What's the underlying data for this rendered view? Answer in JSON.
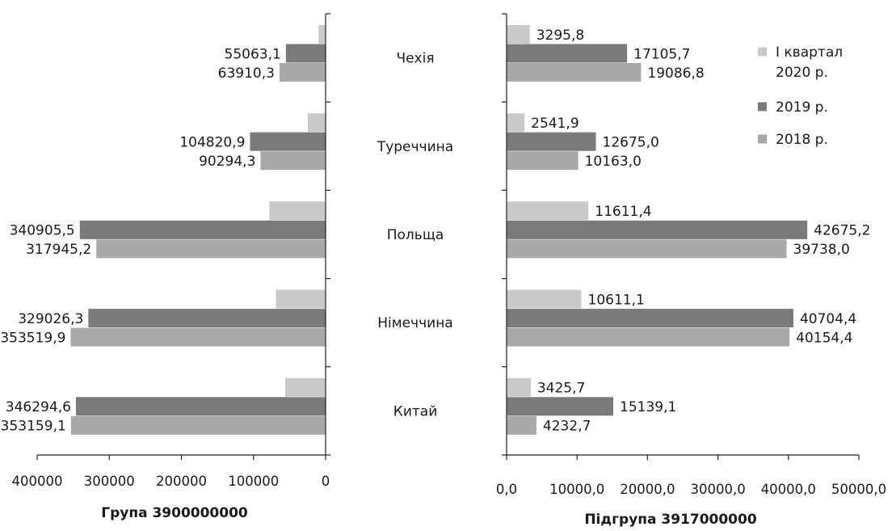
{
  "chart_data": [
    {
      "type": "bar",
      "orientation": "horizontal",
      "direction": "reversed",
      "title": "Група 3900000000",
      "categories": [
        "Чехія",
        "Туреччина",
        "Польща",
        "Німеччина",
        "Китай"
      ],
      "series": [
        {
          "key": "q1_2020",
          "values": [
            9600,
            24600,
            78000,
            69000,
            56000
          ],
          "labels": [
            "",
            "",
            "",
            "",
            ""
          ]
        },
        {
          "key": "y2019",
          "values": [
            55063.1,
            104820.9,
            340905.5,
            329026.3,
            346294.6
          ],
          "labels": [
            "55063,1",
            "104820,9",
            "340905,5",
            "329026,3",
            "346294,6"
          ]
        },
        {
          "key": "y2018",
          "values": [
            63910.3,
            90294.3,
            317945.2,
            353519.9,
            353159.1
          ],
          "labels": [
            "63910,3",
            "90294,3",
            "317945,2",
            "353519,9",
            "353159,1"
          ]
        }
      ],
      "xlim": [
        0,
        400000
      ],
      "ticks": [
        400000,
        300000,
        200000,
        100000,
        0
      ],
      "tick_labels": [
        "400000",
        "300000",
        "200000",
        "100000",
        "0"
      ],
      "grid": false
    },
    {
      "type": "bar",
      "orientation": "horizontal",
      "title": "Підгрупа 3917000000",
      "categories": [
        "Чехія",
        "Туреччина",
        "Польща",
        "Німеччина",
        "Китай"
      ],
      "series": [
        {
          "key": "q1_2020",
          "name": "І квартал 2020 р.",
          "values": [
            3295.8,
            2541.9,
            11611.4,
            10611.1,
            3425.7
          ],
          "labels": [
            "3295,8",
            "2541,9",
            "11611,4",
            "10611,1",
            "3425,7"
          ]
        },
        {
          "key": "y2019",
          "name": "2019 р.",
          "values": [
            17105.7,
            12675.0,
            42675.2,
            40704.4,
            15139.1
          ],
          "labels": [
            "17105,7",
            "12675,0",
            "42675,2",
            "40704,4",
            "15139,1"
          ]
        },
        {
          "key": "y2018",
          "name": "2018 р.",
          "values": [
            19086.8,
            10163.0,
            39738.0,
            40154.4,
            4232.7
          ],
          "labels": [
            "19086,8",
            "10163,0",
            "39738,0",
            "40154,4",
            "4232,7"
          ]
        }
      ],
      "xlim": [
        0,
        50000
      ],
      "ticks": [
        0,
        10000,
        20000,
        30000,
        40000,
        50000
      ],
      "tick_labels": [
        "0,0",
        "10000,0",
        "20000,0",
        "30000,0",
        "40000,0",
        "50000,0"
      ],
      "grid": false,
      "legend": {
        "position": "top-right",
        "items": [
          {
            "key": "q1_2020",
            "lines": [
              "І квартал",
              "2020 р."
            ]
          },
          {
            "key": "y2019",
            "lines": [
              "2019 р."
            ]
          },
          {
            "key": "y2018",
            "lines": [
              "2018 р."
            ]
          }
        ]
      }
    }
  ],
  "colors": {
    "q1_2020": "#c9c9c9",
    "y2019": "#7a7a7a",
    "y2018": "#a9a9a9",
    "axis": "#222222"
  }
}
